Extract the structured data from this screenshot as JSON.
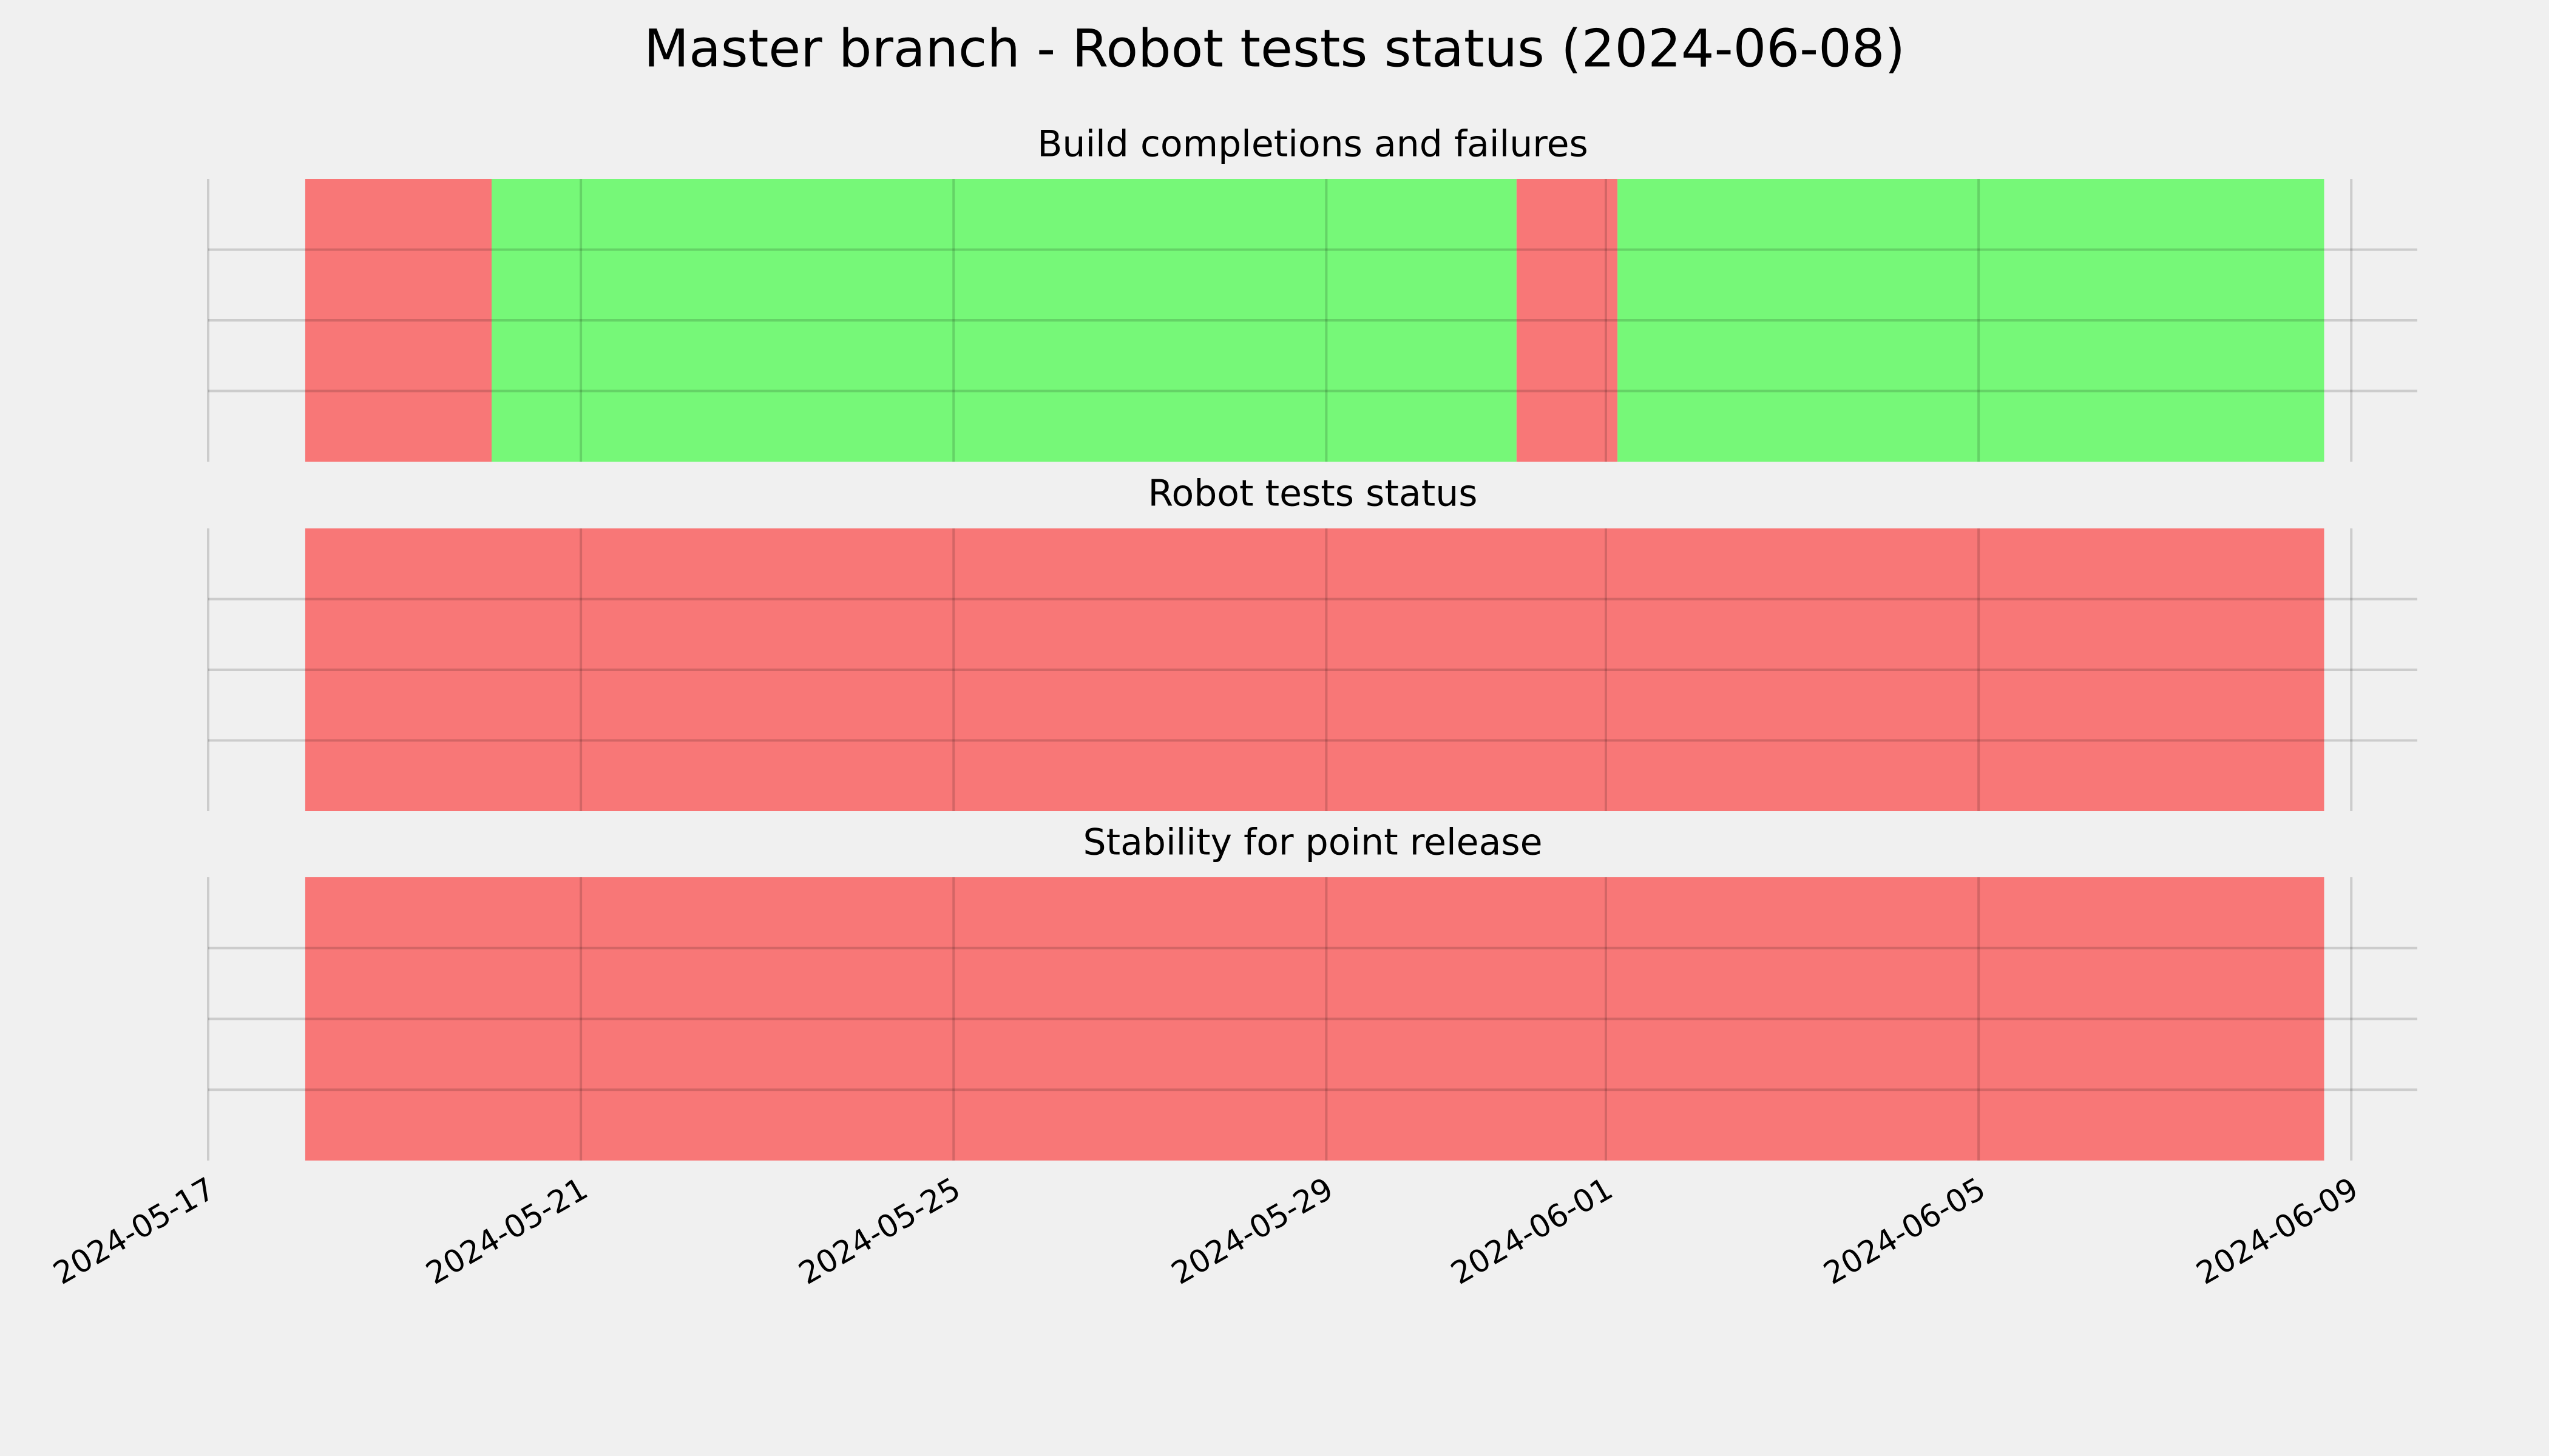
{
  "title": "Master branch - Robot tests status (2024-06-08)",
  "chart_data": [
    {
      "type": "timeline",
      "title": "Build completions and failures",
      "segments": [
        {
          "start": "2024-05-18T01:00",
          "end": "2024-05-20T01:00",
          "color": "#f87777"
        },
        {
          "start": "2024-05-20T01:00",
          "end": "2024-05-31T01:00",
          "color": "#76f878"
        },
        {
          "start": "2024-05-31T01:00",
          "end": "2024-06-01T03:00",
          "color": "#f87777"
        },
        {
          "start": "2024-06-01T03:00",
          "end": "2024-06-08T17:00",
          "color": "#76f878"
        }
      ]
    },
    {
      "type": "timeline",
      "title": "Robot tests status",
      "segments": [
        {
          "start": "2024-05-18T01:00",
          "end": "2024-06-08T17:00",
          "color": "#f87777"
        }
      ]
    },
    {
      "type": "timeline",
      "title": "Stability for point release",
      "segments": [
        {
          "start": "2024-05-18T01:00",
          "end": "2024-06-08T17:00",
          "color": "#f87777"
        }
      ],
      "xlim": [
        "2024-05-17",
        "2024-06-09T17:00"
      ],
      "xticks": [
        "2024-05-17",
        "2024-05-21",
        "2024-05-25",
        "2024-05-29",
        "2024-06-01",
        "2024-06-05",
        "2024-06-09"
      ]
    }
  ]
}
